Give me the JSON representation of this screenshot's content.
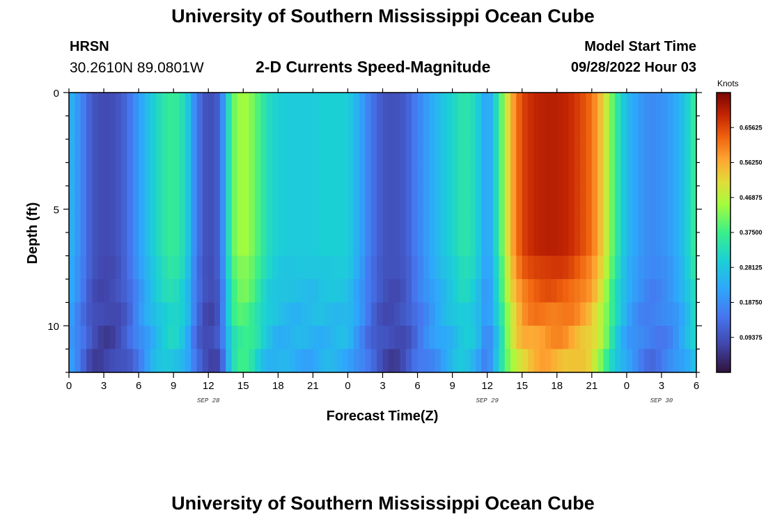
{
  "header": {
    "title": "University of Southern Mississippi Ocean Cube",
    "station": "HRSN",
    "coords": "30.2610N  89.0801W",
    "subtitle": "2-D Currents Speed-Magnitude",
    "start_label": "Model Start Time",
    "start_value": "09/28/2022 Hour 03"
  },
  "footer": {
    "title": "University of Southern Mississippi Ocean Cube"
  },
  "chart_data": {
    "type": "heatmap",
    "xlabel": "Forecast Time(Z)",
    "ylabel": "Depth (ft)",
    "x_hours_range": [
      0,
      54
    ],
    "ylim": [
      0,
      12
    ],
    "y_ticks": [
      "0",
      "5",
      "10"
    ],
    "x_tick_labels": [
      "0",
      "3",
      "6",
      "9",
      "12",
      "15",
      "18",
      "21",
      "0",
      "3",
      "6",
      "9",
      "12",
      "15",
      "18",
      "21",
      "0",
      "3",
      "6"
    ],
    "day_labels": [
      {
        "label": "SEP 28",
        "hour": 12
      },
      {
        "label": "SEP 29",
        "hour": 36
      },
      {
        "label": "SEP 30",
        "hour": 51
      }
    ],
    "colorbar": {
      "title": "Knots",
      "min": 0.0,
      "max": 0.75,
      "tick_labels": [
        "0.65625",
        "0.56250",
        "0.46875",
        "0.37500",
        "0.28125",
        "0.18750",
        "0.09375"
      ],
      "tick_values": [
        0.65625,
        0.5625,
        0.46875,
        0.375,
        0.28125,
        0.1875,
        0.09375
      ]
    },
    "surface_speed_profile_knots": {
      "hours": [
        0,
        1,
        2,
        3,
        4,
        5,
        6,
        7,
        8,
        9,
        10,
        11,
        12,
        13,
        14,
        15,
        16,
        17,
        18,
        19,
        20,
        21,
        22,
        23,
        24,
        25,
        26,
        27,
        28,
        29,
        30,
        31,
        32,
        33,
        34,
        35,
        36,
        37,
        38,
        39,
        40,
        41,
        42,
        43,
        44,
        45,
        46,
        47,
        48,
        49,
        50,
        51,
        52,
        53,
        54
      ],
      "values": [
        0.26,
        0.18,
        0.1,
        0.08,
        0.09,
        0.13,
        0.21,
        0.28,
        0.34,
        0.37,
        0.32,
        0.15,
        0.08,
        0.12,
        0.4,
        0.46,
        0.41,
        0.33,
        0.3,
        0.29,
        0.29,
        0.29,
        0.3,
        0.3,
        0.3,
        0.23,
        0.15,
        0.1,
        0.09,
        0.11,
        0.17,
        0.22,
        0.27,
        0.31,
        0.35,
        0.32,
        0.2,
        0.36,
        0.55,
        0.66,
        0.69,
        0.7,
        0.7,
        0.69,
        0.66,
        0.62,
        0.52,
        0.37,
        0.26,
        0.21,
        0.18,
        0.19,
        0.22,
        0.28,
        0.38
      ]
    }
  }
}
